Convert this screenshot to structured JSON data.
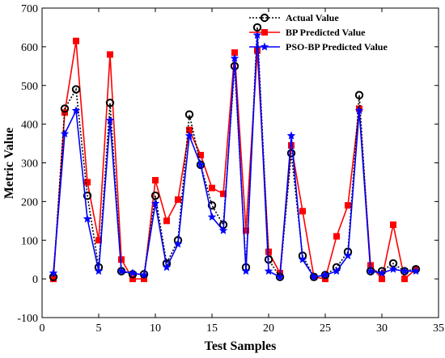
{
  "chart_data": {
    "type": "line",
    "xlabel": "Test Samples",
    "ylabel": "Metric Value",
    "xlim": [
      0,
      35
    ],
    "ylim": [
      -100,
      700
    ],
    "xticks": [
      0,
      5,
      10,
      15,
      20,
      25,
      30,
      35
    ],
    "yticks": [
      -100,
      0,
      100,
      200,
      300,
      400,
      500,
      600,
      700
    ],
    "grid": false,
    "legend_position": "top-right",
    "x": [
      1,
      2,
      3,
      4,
      5,
      6,
      7,
      8,
      9,
      10,
      11,
      12,
      13,
      14,
      15,
      16,
      17,
      18,
      19,
      20,
      21,
      22,
      23,
      24,
      25,
      26,
      27,
      28,
      29,
      30,
      31,
      32,
      33
    ],
    "series": [
      {
        "name": "Actual Value",
        "color": "#000000",
        "style": "dotted-circle",
        "values": [
          5,
          440,
          490,
          215,
          30,
          455,
          20,
          12,
          12,
          215,
          40,
          100,
          425,
          295,
          190,
          140,
          550,
          30,
          650,
          50,
          5,
          325,
          60,
          5,
          10,
          30,
          70,
          475,
          20,
          20,
          40,
          20,
          25
        ]
      },
      {
        "name": "BP Predicted Value",
        "color": "#ff0000",
        "style": "solid-square",
        "values": [
          0,
          430,
          615,
          250,
          100,
          580,
          50,
          0,
          0,
          255,
          150,
          205,
          385,
          320,
          235,
          220,
          585,
          125,
          590,
          70,
          15,
          345,
          175,
          5,
          0,
          110,
          190,
          440,
          35,
          0,
          140,
          0,
          25
        ]
      },
      {
        "name": "PSO-BP Predicted Value",
        "color": "#0000ff",
        "style": "solid-star",
        "values": [
          15,
          375,
          435,
          155,
          20,
          410,
          20,
          15,
          10,
          195,
          30,
          90,
          370,
          295,
          160,
          125,
          570,
          20,
          630,
          20,
          5,
          370,
          50,
          5,
          10,
          20,
          60,
          435,
          20,
          15,
          25,
          20,
          20
        ]
      }
    ]
  }
}
